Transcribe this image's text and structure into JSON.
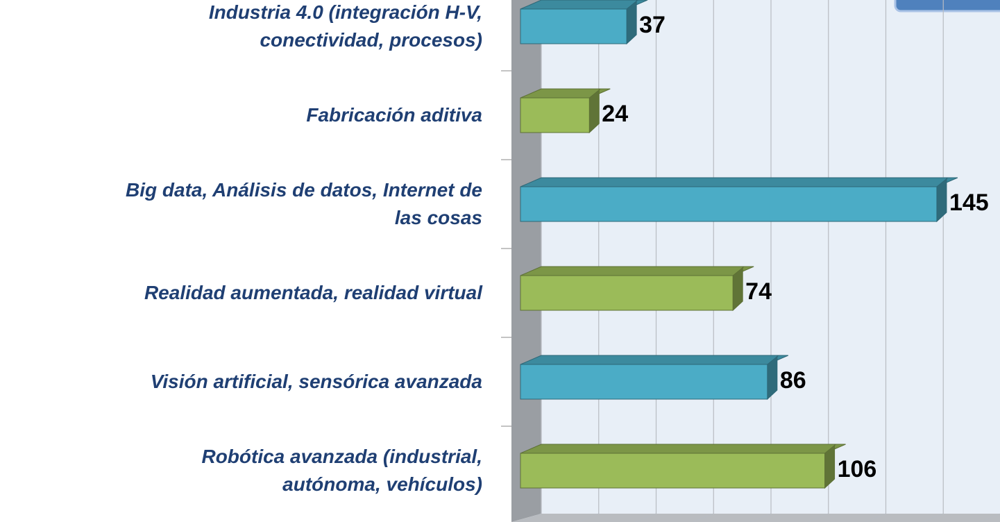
{
  "chart_data": {
    "type": "bar3d_horizontal",
    "categories": [
      "Industria 4.0 (integración H-V,\nconectividad, procesos)",
      "Fabricación aditiva",
      "Big data, Análisis de datos, Internet de\nlas cosas",
      "Realidad aumentada, realidad virtual",
      "Visión artificial, sensórica avanzada",
      "Robótica avanzada (industrial,\nautónoma, vehículos)"
    ],
    "values": [
      37,
      24,
      145,
      74,
      86,
      106
    ],
    "colors": [
      "#4bacc6",
      "#9bbb59",
      "#4bacc6",
      "#9bbb59",
      "#4bacc6",
      "#9bbb59"
    ],
    "xlim": [
      0,
      160
    ],
    "xticks": [
      0,
      20,
      40,
      60,
      80,
      100,
      120,
      140,
      160
    ],
    "grid": true
  }
}
